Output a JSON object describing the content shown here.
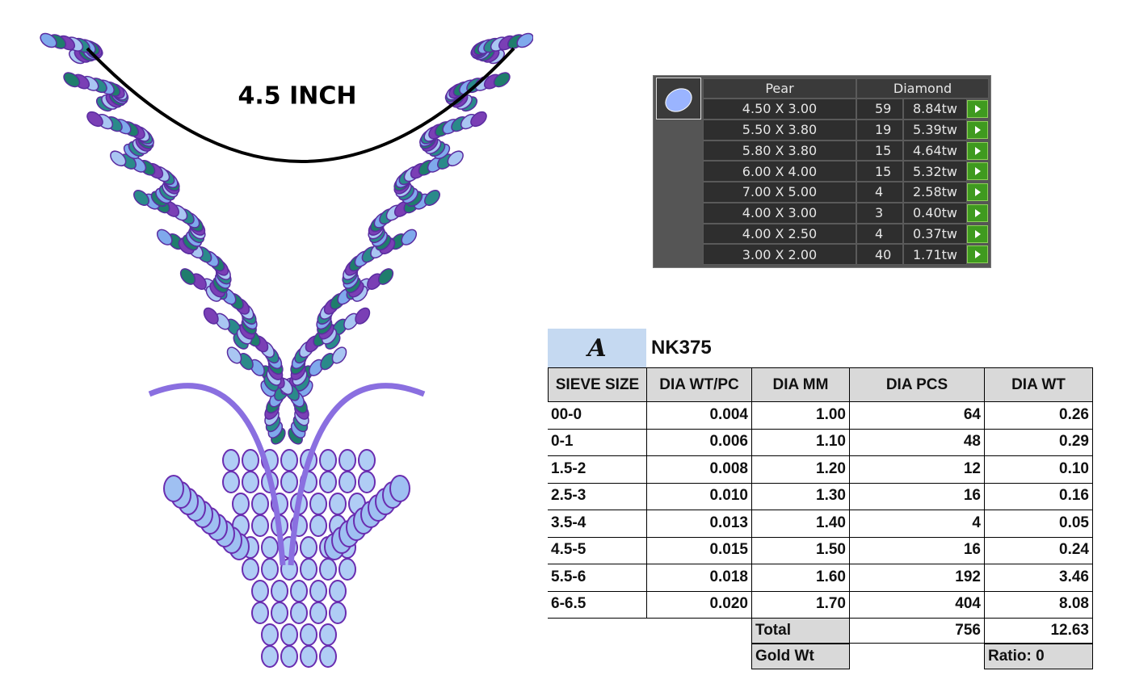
{
  "measure_label": "4.5 INCH",
  "stone_table": {
    "header": [
      "Pear",
      "Diamond"
    ],
    "rows": [
      [
        "4.50 X 3.00",
        "59",
        "8.84tw"
      ],
      [
        "5.50 X 3.80",
        "19",
        "5.39tw"
      ],
      [
        "5.80 X 3.80",
        "15",
        "4.64tw"
      ],
      [
        "6.00 X 4.00",
        "15",
        "5.32tw"
      ],
      [
        "7.00 X 5.00",
        "4",
        "2.58tw"
      ],
      [
        "4.00 X 3.00",
        "3",
        "0.40tw"
      ],
      [
        "4.00 X 2.50",
        "4",
        "0.37tw"
      ],
      [
        "3.00 X 2.00",
        "40",
        "1.71tw"
      ]
    ]
  },
  "spec_sheet": {
    "logo": "A",
    "code": "NK375",
    "columns": [
      "SIEVE SIZE",
      "DIA WT/PC",
      "DIA MM",
      "DIA PCS",
      "DIA WT"
    ],
    "rows": [
      [
        "00-0",
        "0.004",
        "1.00",
        "64",
        "0.26"
      ],
      [
        "0-1",
        "0.006",
        "1.10",
        "48",
        "0.29"
      ],
      [
        "1.5-2",
        "0.008",
        "1.20",
        "12",
        "0.10"
      ],
      [
        "2.5-3",
        "0.010",
        "1.30",
        "16",
        "0.16"
      ],
      [
        "3.5-4",
        "0.013",
        "1.40",
        "4",
        "0.05"
      ],
      [
        "4.5-5",
        "0.015",
        "1.50",
        "16",
        "0.24"
      ],
      [
        "5.5-6",
        "0.018",
        "1.60",
        "192",
        "3.46"
      ],
      [
        "6-6.5",
        "0.020",
        "1.70",
        "404",
        "8.08"
      ]
    ],
    "total": {
      "label": "Total",
      "pcs": "756",
      "wt": "12.63"
    },
    "gold": {
      "label": "Gold Wt",
      "ratio": "Ratio: 0"
    }
  }
}
